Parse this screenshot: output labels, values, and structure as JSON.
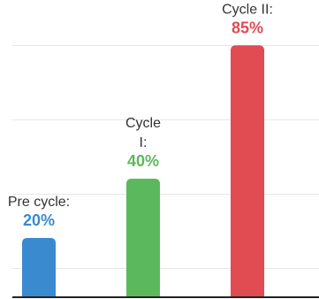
{
  "chart_data": {
    "type": "bar",
    "categories": [
      "Pre cycle:",
      "Cycle I:",
      "Cycle II:"
    ],
    "values": [
      20,
      40,
      85
    ],
    "value_labels": [
      "20%",
      "40%",
      "85%"
    ],
    "category_label_lines": [
      [
        "Pre cycle:"
      ],
      [
        "Cycle",
        "I:"
      ],
      [
        "Cycle II:"
      ]
    ],
    "colors": [
      "#3a8ad0",
      "#5cb85c",
      "#e14b52"
    ],
    "ylim": [
      0,
      100
    ],
    "grid": true,
    "title": "",
    "xlabel": "",
    "ylabel": ""
  }
}
